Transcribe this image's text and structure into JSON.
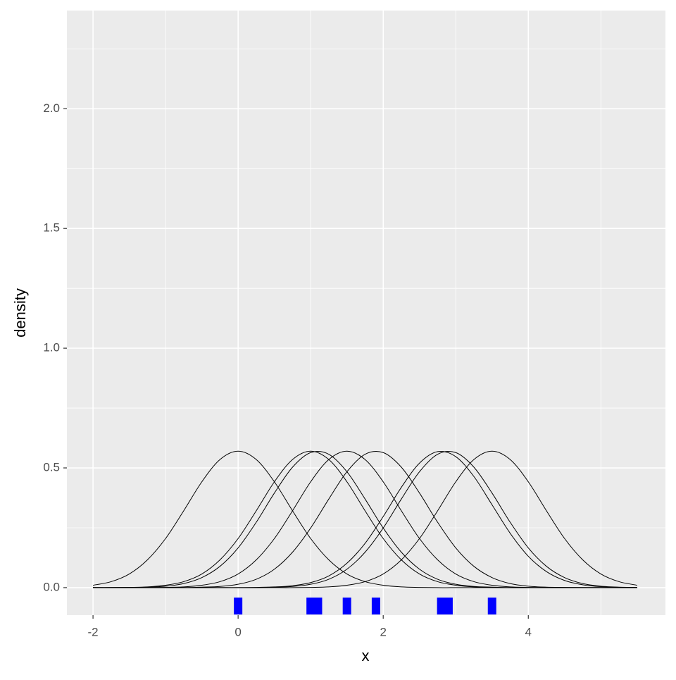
{
  "chart_data": {
    "type": "density",
    "x_label": "x",
    "y_label": "density",
    "xlim": [
      -2.36,
      5.89
    ],
    "ylim": [
      -0.115,
      2.41
    ],
    "xticks": [
      -2,
      0,
      2,
      4
    ],
    "yticks": [
      {
        "value": 0,
        "label": "0.0"
      },
      {
        "value": 0.5,
        "label": "0.5"
      },
      {
        "value": 1,
        "label": "1.0"
      },
      {
        "value": 1.5,
        "label": "1.5"
      },
      {
        "value": 2,
        "label": "2.0"
      }
    ],
    "grid": true,
    "line_color": "#000000",
    "rug_color": "#0000ff",
    "x": [
      -2,
      -1.75,
      -1.5,
      -1.25,
      -1,
      -0.75,
      -0.5,
      -0.25,
      0,
      0.25,
      0.5,
      0.75,
      1,
      1.25,
      1.5,
      1.75,
      2,
      2.25,
      2.5,
      2.75,
      3,
      3.25,
      3.5,
      3.75,
      4,
      4.25,
      4.5,
      4.75,
      5,
      5.25,
      5.5
    ],
    "series": [
      {
        "values": [
          0.01,
          0.025,
          0.057,
          0.116,
          0.205,
          0.321,
          0.442,
          0.535,
          0.57,
          0.535,
          0.442,
          0.321,
          0.205,
          0.116,
          0.057,
          0.025,
          0.01,
          0.003,
          0.001,
          0,
          0,
          0,
          0,
          0,
          0,
          0,
          0,
          0,
          0,
          0,
          0
        ]
      },
      {
        "values": [
          0,
          0,
          0.001,
          0.003,
          0.01,
          0.025,
          0.057,
          0.116,
          0.205,
          0.321,
          0.442,
          0.535,
          0.57,
          0.535,
          0.442,
          0.321,
          0.205,
          0.116,
          0.057,
          0.025,
          0.01,
          0.003,
          0.001,
          0,
          0,
          0,
          0,
          0,
          0,
          0,
          0
        ]
      },
      {
        "values": [
          0,
          0,
          0.001,
          0.002,
          0.006,
          0.017,
          0.042,
          0.089,
          0.166,
          0.273,
          0.395,
          0.503,
          0.564,
          0.557,
          0.484,
          0.37,
          0.249,
          0.148,
          0.077,
          0.035,
          0.014,
          0.005,
          0.002,
          0,
          0,
          0,
          0,
          0,
          0,
          0,
          0
        ]
      },
      {
        "values": [
          0,
          0,
          0,
          0,
          0.001,
          0.003,
          0.01,
          0.025,
          0.057,
          0.116,
          0.205,
          0.321,
          0.442,
          0.535,
          0.57,
          0.535,
          0.442,
          0.321,
          0.205,
          0.116,
          0.057,
          0.025,
          0.01,
          0.003,
          0.001,
          0,
          0,
          0,
          0,
          0,
          0
        ]
      },
      {
        "values": [
          0,
          0,
          0,
          0,
          0,
          0,
          0.002,
          0.005,
          0.014,
          0.035,
          0.077,
          0.148,
          0.249,
          0.37,
          0.484,
          0.557,
          0.564,
          0.503,
          0.395,
          0.273,
          0.166,
          0.089,
          0.042,
          0.017,
          0.006,
          0.002,
          0.001,
          0,
          0,
          0,
          0
        ]
      },
      {
        "values": [
          0,
          0,
          0,
          0,
          0,
          0,
          0,
          0,
          0,
          0.001,
          0.003,
          0.008,
          0.021,
          0.049,
          0.102,
          0.185,
          0.297,
          0.419,
          0.52,
          0.568,
          0.547,
          0.464,
          0.346,
          0.227,
          0.131,
          0.067,
          0.03,
          0.012,
          0.004,
          0.001,
          0
        ]
      },
      {
        "values": [
          0,
          0,
          0,
          0,
          0,
          0,
          0,
          0,
          0,
          0,
          0.002,
          0.005,
          0.014,
          0.035,
          0.077,
          0.148,
          0.249,
          0.37,
          0.484,
          0.557,
          0.564,
          0.503,
          0.395,
          0.273,
          0.166,
          0.089,
          0.042,
          0.017,
          0.006,
          0.002,
          0.001
        ]
      },
      {
        "values": [
          0,
          0,
          0,
          0,
          0,
          0,
          0,
          0,
          0,
          0,
          0,
          0,
          0.001,
          0.003,
          0.01,
          0.025,
          0.057,
          0.116,
          0.205,
          0.321,
          0.442,
          0.535,
          0.57,
          0.535,
          0.442,
          0.321,
          0.205,
          0.116,
          0.057,
          0.025,
          0.01
        ]
      }
    ],
    "rug": [
      0,
      1.0,
      1.1,
      1.5,
      1.9,
      2.8,
      2.9,
      3.5
    ]
  }
}
